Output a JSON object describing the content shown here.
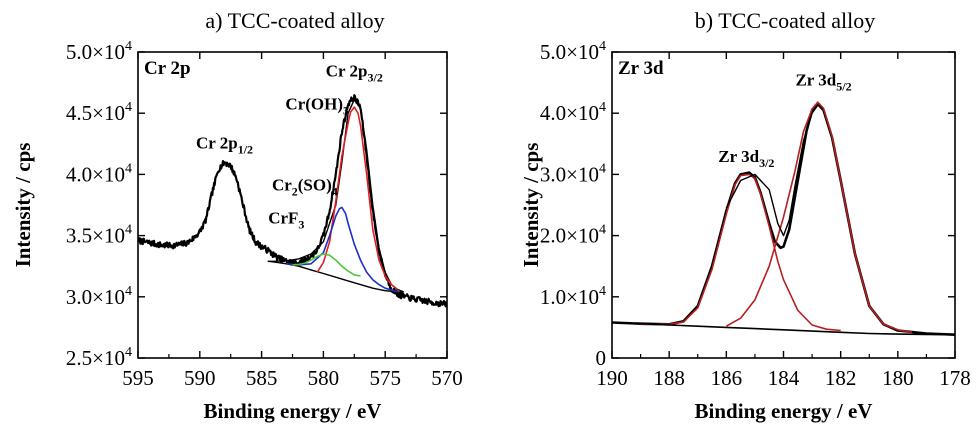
{
  "chart_data": [
    {
      "type": "line",
      "title": "a) TCC-coated alloy",
      "corner_label": "Cr 2p",
      "xlabel": "Binding energy / eV",
      "ylabel": "Intensity / cps",
      "xlim": [
        595,
        570
      ],
      "ylim": [
        25000,
        50000
      ],
      "x_reversed": true,
      "grid": false,
      "xticks": [
        595,
        590,
        585,
        580,
        575,
        570
      ],
      "xtick_labels": [
        "595",
        "590",
        "585",
        "580",
        "575",
        "570"
      ],
      "yticks": [
        25000,
        30000,
        35000,
        40000,
        45000,
        50000
      ],
      "ytick_mantissa": [
        "2.5×10",
        "3.0×10",
        "3.5×10",
        "4.0×10",
        "4.5×10",
        "5.0×10"
      ],
      "ytick_exponent": "4",
      "annotations": [
        {
          "main": "Cr 2p",
          "sub": "1/2",
          "tail": "",
          "x": 588,
          "y": 42100
        },
        {
          "main": "Cr 2p",
          "sub": "3/2",
          "tail": "",
          "x": 577.5,
          "y": 48000
        },
        {
          "main": "Cr(OH)",
          "sub": "3",
          "tail": "",
          "x": 580.5,
          "y": 45300
        },
        {
          "main": "Cr",
          "sub": "2",
          "tail": "(SO)",
          "sub2": "4",
          "x": 581.5,
          "y": 38700
        },
        {
          "main": "CrF",
          "sub": "3",
          "tail": "",
          "x": 583,
          "y": 36000
        }
      ],
      "series": [
        {
          "color": "#000000",
          "width": 2.2,
          "noise": 240,
          "seed": 7,
          "x": [
            595,
            594,
            593,
            592,
            591,
            590.5,
            590,
            589.5,
            589,
            588.5,
            588,
            587.5,
            587,
            586.5,
            586,
            585.5,
            585,
            584.5,
            584,
            583.5,
            583,
            582.5,
            582,
            581.5,
            581,
            580.5,
            580,
            579.5,
            579,
            578.5,
            578,
            577.5,
            577,
            576.5,
            576,
            575.5,
            575,
            574.5,
            574,
            573,
            572,
            571,
            570
          ],
          "y": [
            34600,
            34400,
            34200,
            34200,
            34400,
            34800,
            35300,
            36300,
            38500,
            40400,
            41000,
            40700,
            39600,
            37500,
            35500,
            34500,
            34100,
            33800,
            33400,
            33100,
            32900,
            32800,
            32800,
            33000,
            33300,
            33800,
            35000,
            37000,
            40000,
            43500,
            45800,
            46300,
            45500,
            41500,
            37000,
            33700,
            31800,
            30700,
            30200,
            29900,
            29700,
            29500,
            29400
          ]
        },
        {
          "color": "#000000",
          "width": 1.4,
          "noise": 0,
          "seed": 1,
          "x": [
            584.5,
            584,
            583,
            582,
            581,
            580,
            579,
            578.5,
            578,
            577.5,
            577,
            576.5,
            576,
            575.5,
            575,
            574.5,
            574,
            573.5
          ],
          "y": [
            32900,
            32900,
            32950,
            33100,
            33500,
            34500,
            37500,
            41000,
            45000,
            46100,
            45400,
            42000,
            37500,
            34000,
            32000,
            31000,
            30600,
            30400
          ]
        },
        {
          "color": "#000000",
          "width": 1.4,
          "noise": 0,
          "seed": 1,
          "x": [
            584.5,
            584,
            583,
            582,
            581,
            580,
            579,
            578,
            577,
            576,
            575,
            574,
            573.5
          ],
          "y": [
            32900,
            32850,
            32700,
            32500,
            32200,
            31900,
            31600,
            31300,
            31000,
            30700,
            30500,
            30400,
            30400
          ]
        },
        {
          "color": "#e02020",
          "width": 1.6,
          "noise": 0,
          "seed": 1,
          "x": [
            580.5,
            580,
            579.5,
            579,
            578.5,
            578,
            577.8,
            577.5,
            577.2,
            577,
            576.5,
            576,
            575.5,
            575,
            574.5,
            574
          ],
          "y": [
            32000,
            32800,
            34500,
            37800,
            41500,
            44200,
            45100,
            45500,
            45000,
            44000,
            40000,
            35500,
            33000,
            31700,
            31000,
            30600
          ]
        },
        {
          "color": "#1c2ec8",
          "width": 1.6,
          "noise": 0,
          "seed": 1,
          "x": [
            583,
            582,
            581,
            580,
            579.5,
            579,
            578.7,
            578.5,
            578.2,
            578,
            577.5,
            577,
            576.5,
            576,
            575.5,
            575,
            574
          ],
          "y": [
            32700,
            32600,
            32700,
            33600,
            35000,
            36600,
            37200,
            37300,
            36800,
            36000,
            34300,
            33000,
            32000,
            31400,
            31000,
            30700,
            30400
          ]
        },
        {
          "color": "#52c43a",
          "width": 1.6,
          "noise": 0,
          "seed": 1,
          "x": [
            582.5,
            582,
            581.5,
            581,
            580.5,
            580,
            579.5,
            579,
            578.5,
            578,
            577.5,
            577
          ],
          "y": [
            32600,
            32650,
            32750,
            33000,
            33300,
            33500,
            33400,
            33000,
            32500,
            32100,
            31800,
            31700
          ]
        }
      ]
    },
    {
      "type": "line",
      "title": "b) TCC-coated alloy",
      "corner_label": "Zr 3d",
      "xlabel": "Binding energy / eV",
      "ylabel": "Intensity / cps",
      "xlim": [
        190,
        178
      ],
      "ylim": [
        0,
        50000
      ],
      "x_reversed": true,
      "grid": false,
      "xticks": [
        190,
        188,
        186,
        184,
        182,
        180,
        178
      ],
      "xtick_labels": [
        "190",
        "188",
        "186",
        "184",
        "182",
        "180",
        "178"
      ],
      "yticks": [
        0,
        10000,
        20000,
        30000,
        40000,
        50000
      ],
      "ytick_mantissa": [
        "0",
        "1.0×10",
        "2.0×10",
        "3.0×10",
        "4.0×10",
        "5.0×10"
      ],
      "ytick_exponent": "4",
      "annotations": [
        {
          "main": "Zr 3d",
          "sub": "3/2",
          "tail": "",
          "x": 185.3,
          "y": 32000
        },
        {
          "main": "Zr 3d",
          "sub": "5/2",
          "tail": "",
          "x": 182.6,
          "y": 44500
        }
      ],
      "series": [
        {
          "color": "#000000",
          "width": 2.6,
          "noise": 0,
          "seed": 1,
          "x": [
            190,
            189,
            188,
            187.5,
            187,
            186.5,
            186,
            185.7,
            185.5,
            185.2,
            185,
            184.8,
            184.5,
            184.3,
            184.1,
            184,
            183.8,
            183.5,
            183.2,
            183,
            182.8,
            182.6,
            182.3,
            182,
            181.5,
            181,
            180.5,
            180,
            179,
            178
          ],
          "y": [
            5800,
            5600,
            5500,
            6000,
            8500,
            15000,
            24000,
            28500,
            30000,
            30300,
            29500,
            27000,
            22000,
            19000,
            18000,
            18200,
            21000,
            29000,
            37000,
            40500,
            41500,
            40500,
            36000,
            29000,
            17000,
            8500,
            5500,
            4500,
            4000,
            3800
          ]
        },
        {
          "color": "#b81f1f",
          "width": 1.6,
          "noise": 0,
          "seed": 1,
          "x": [
            189,
            188,
            187.5,
            187,
            186.5,
            186,
            185.7,
            185.5,
            185.2,
            185,
            184.8,
            184.5,
            184.2,
            184,
            183.5,
            183,
            182.5,
            182
          ],
          "y": [
            5500,
            5500,
            5900,
            8200,
            14500,
            23500,
            28300,
            29800,
            30000,
            29300,
            26800,
            21500,
            15800,
            12800,
            7800,
            5400,
            4700,
            4500
          ]
        },
        {
          "color": "#b81f1f",
          "width": 1.6,
          "noise": 0,
          "seed": 1,
          "x": [
            186,
            185.5,
            185,
            184.5,
            184,
            183.6,
            183.3,
            183,
            182.8,
            182.6,
            182.3,
            182,
            181.5,
            181,
            180.5,
            180,
            179.5
          ],
          "y": [
            5200,
            6500,
            9500,
            15000,
            23000,
            30500,
            37000,
            40700,
            41800,
            40800,
            36200,
            29000,
            17000,
            8500,
            5500,
            4600,
            4200
          ]
        },
        {
          "color": "#000000",
          "width": 1.4,
          "noise": 0,
          "seed": 1,
          "x": [
            186,
            185.5,
            185,
            184.5,
            184.2,
            184,
            183.8,
            183.6,
            183.3,
            183,
            182.8
          ],
          "y": [
            24500,
            29000,
            30000,
            27500,
            22000,
            20000,
            22500,
            28000,
            35500,
            40000,
            41300
          ]
        },
        {
          "color": "#000000",
          "width": 1.6,
          "noise": 0,
          "seed": 1,
          "x": [
            190,
            189,
            188,
            187,
            186,
            185,
            184,
            183,
            182,
            181,
            180,
            179,
            178
          ],
          "y": [
            5800,
            5600,
            5400,
            5200,
            5000,
            4800,
            4600,
            4400,
            4200,
            4000,
            3900,
            3850,
            3800
          ]
        }
      ]
    }
  ]
}
